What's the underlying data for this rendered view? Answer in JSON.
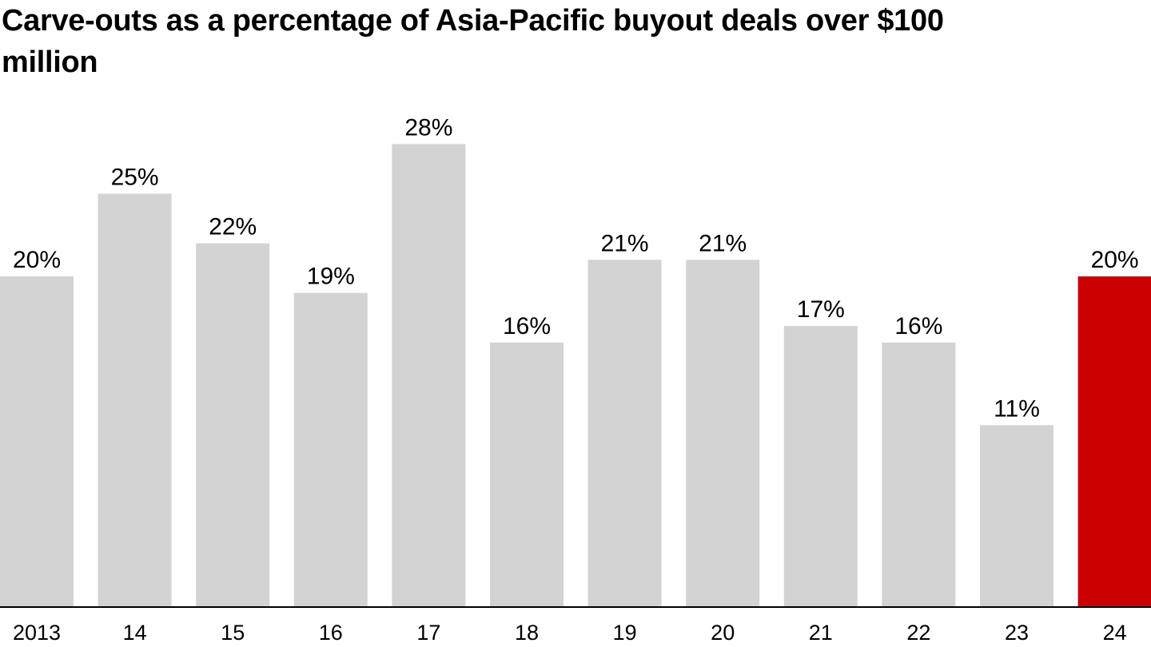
{
  "chart_data": {
    "type": "bar",
    "title": "Carve-outs as a percentage of Asia-Pacific buyout deals over $100 million",
    "xlabel": "",
    "ylabel": "",
    "categories": [
      "2013",
      "14",
      "15",
      "16",
      "17",
      "18",
      "19",
      "20",
      "21",
      "22",
      "23",
      "24"
    ],
    "values": [
      20,
      25,
      22,
      19,
      28,
      16,
      21,
      21,
      17,
      16,
      11,
      20
    ],
    "value_labels": [
      "20%",
      "25%",
      "22%",
      "19%",
      "28%",
      "16%",
      "21%",
      "21%",
      "17%",
      "16%",
      "11%",
      "20%"
    ],
    "ylim": [
      0,
      30
    ],
    "grid": false,
    "legend": "none",
    "colors": {
      "default_bar": "#d3d3d3",
      "highlight_bar": "#cc0000",
      "axis_line": "#000000"
    },
    "highlight_index": 11
  }
}
